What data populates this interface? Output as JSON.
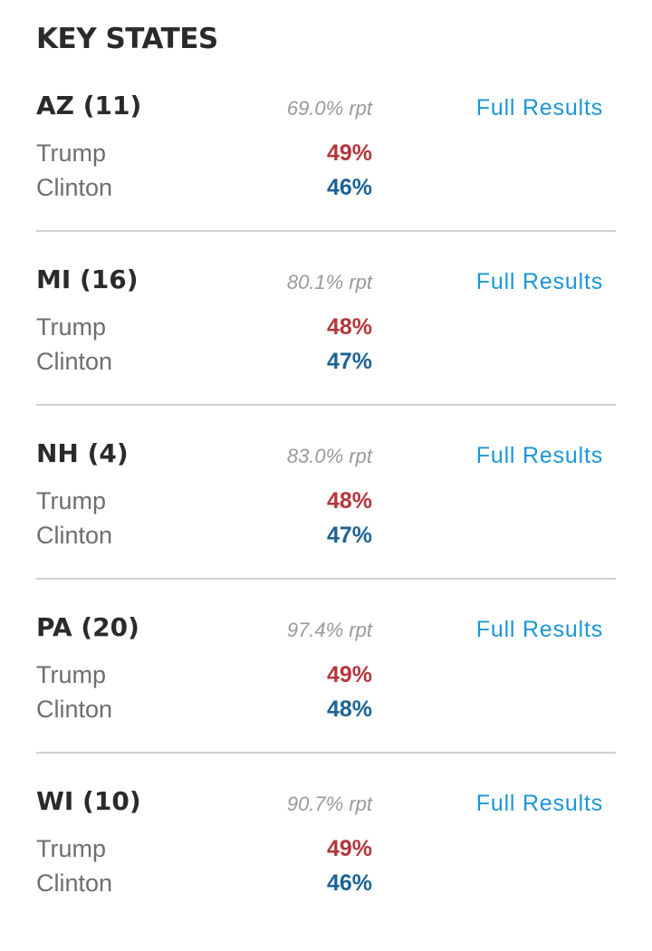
{
  "heading": "KEY STATES",
  "colors": {
    "republican": "#b3373c",
    "democrat": "#1d6396",
    "link": "#1a96d6",
    "divider": "#d0d0d0",
    "reporting": "#9a9a9a"
  },
  "states": [
    {
      "name": "AZ (11)",
      "reporting": "69.0% rpt",
      "link_label": "Full Results",
      "candidates": [
        {
          "name": "Trump",
          "percent": "49%"
        },
        {
          "name": "Clinton",
          "percent": "46%"
        }
      ]
    },
    {
      "name": "MI (16)",
      "reporting": "80.1% rpt",
      "link_label": "Full Results",
      "candidates": [
        {
          "name": "Trump",
          "percent": "48%"
        },
        {
          "name": "Clinton",
          "percent": "47%"
        }
      ]
    },
    {
      "name": "NH (4)",
      "reporting": "83.0% rpt",
      "link_label": "Full Results",
      "candidates": [
        {
          "name": "Trump",
          "percent": "48%"
        },
        {
          "name": "Clinton",
          "percent": "47%"
        }
      ]
    },
    {
      "name": "PA (20)",
      "reporting": "97.4% rpt",
      "link_label": "Full Results",
      "candidates": [
        {
          "name": "Trump",
          "percent": "49%"
        },
        {
          "name": "Clinton",
          "percent": "48%"
        }
      ]
    },
    {
      "name": "WI (10)",
      "reporting": "90.7% rpt",
      "link_label": "Full Results",
      "candidates": [
        {
          "name": "Trump",
          "percent": "49%"
        },
        {
          "name": "Clinton",
          "percent": "46%"
        }
      ]
    }
  ]
}
